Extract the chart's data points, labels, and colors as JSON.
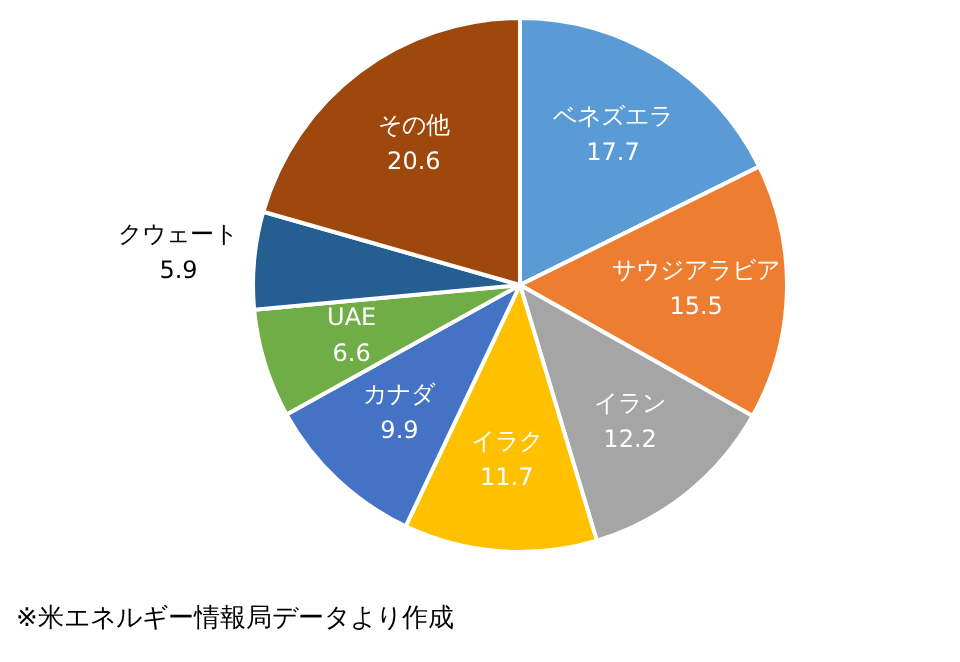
{
  "chart_data": {
    "type": "pie",
    "categories": [
      "ベネズエラ",
      "サウジアラビア",
      "イラン",
      "イラク",
      "カナダ",
      "UAE",
      "クウェート",
      "その他"
    ],
    "values": [
      17.7,
      15.5,
      12.2,
      11.7,
      9.9,
      6.6,
      5.9,
      20.6
    ],
    "colors": [
      "#5b9bd5",
      "#ed7d31",
      "#a5a5a5",
      "#ffc000",
      "#4472c4",
      "#70ad47",
      "#255e91",
      "#9e480e"
    ],
    "data_labels": true,
    "legend": false,
    "annotations": [
      "※米エネルギー情報局データより作成"
    ]
  }
}
